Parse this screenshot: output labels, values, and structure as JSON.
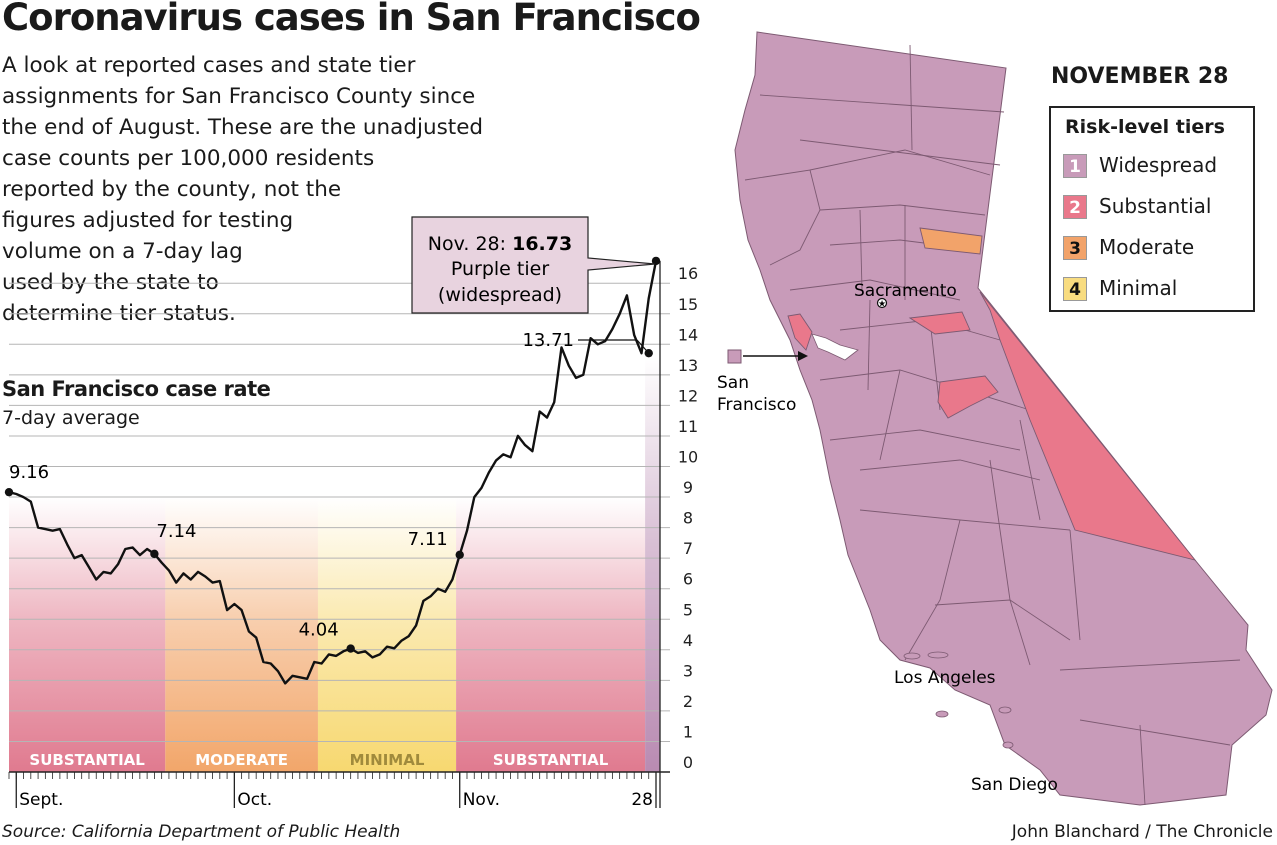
{
  "header": {
    "title": "Coronavirus cases in San Francisco",
    "intro_lines": [
      "A look at reported cases and state tier",
      "assignments for San Francisco County since",
      "the end of August. These are the unadjusted",
      "case counts per 100,000 residents",
      "reported by the county, not the",
      "figures adjusted for testing",
      "volume on a 7-day lag",
      "used by the state to",
      "determine tier status."
    ]
  },
  "chart_data": {
    "type": "line",
    "title": "San Francisco case rate",
    "subtitle": "7-day average",
    "x_tick_labels": [
      "Sept.",
      "Oct.",
      "Nov.",
      "28"
    ],
    "y_ticks": [
      0,
      1,
      2,
      3,
      4,
      5,
      6,
      7,
      8,
      9,
      10,
      11,
      12,
      13,
      14,
      15,
      16
    ],
    "ylim": [
      0,
      16.73
    ],
    "series": [
      {
        "x": [
          "Aug. 31",
          "Sept. 1",
          "Sept. 2",
          "Sept. 3",
          "Sept. 4",
          "Sept. 5",
          "Sept. 6",
          "Sept. 7",
          "Sept. 8",
          "Sept. 9",
          "Sept. 10",
          "Sept. 11",
          "Sept. 12",
          "Sept. 13",
          "Sept. 14",
          "Sept. 15",
          "Sept. 16",
          "Sept. 17",
          "Sept. 18",
          "Sept. 19",
          "Sept. 20",
          "Sept. 21",
          "Sept. 22",
          "Sept. 23",
          "Sept. 24",
          "Sept. 25",
          "Sept. 26",
          "Sept. 27",
          "Sept. 28",
          "Sept. 29",
          "Sept. 30",
          "Oct. 1",
          "Oct. 2",
          "Oct. 3",
          "Oct. 4",
          "Oct. 5",
          "Oct. 6",
          "Oct. 7",
          "Oct. 8",
          "Oct. 9",
          "Oct. 10",
          "Oct. 11",
          "Oct. 12",
          "Oct. 13",
          "Oct. 14",
          "Oct. 15",
          "Oct. 16",
          "Oct. 17",
          "Oct. 18",
          "Oct. 19",
          "Oct. 20",
          "Oct. 21",
          "Oct. 22",
          "Oct. 23",
          "Oct. 24",
          "Oct. 25",
          "Oct. 26",
          "Oct. 27",
          "Oct. 28",
          "Oct. 29",
          "Oct. 30",
          "Oct. 31",
          "Nov. 1",
          "Nov. 2",
          "Nov. 3",
          "Nov. 4",
          "Nov. 5",
          "Nov. 6",
          "Nov. 7",
          "Nov. 8",
          "Nov. 9",
          "Nov. 10",
          "Nov. 11",
          "Nov. 12",
          "Nov. 13",
          "Nov. 14",
          "Nov. 15",
          "Nov. 16",
          "Nov. 17",
          "Nov. 18",
          "Nov. 19",
          "Nov. 20",
          "Nov. 21",
          "Nov. 22",
          "Nov. 23",
          "Nov. 24",
          "Nov. 25",
          "Nov. 26",
          "Nov. 27",
          "Nov. 28"
        ],
        "values": [
          9.16,
          9.1,
          9.0,
          8.85,
          8.0,
          7.95,
          7.9,
          7.95,
          7.45,
          7.0,
          7.1,
          6.7,
          6.3,
          6.55,
          6.5,
          6.8,
          7.3,
          7.35,
          7.1,
          7.3,
          7.14,
          6.85,
          6.6,
          6.2,
          6.5,
          6.3,
          6.55,
          6.4,
          6.2,
          6.25,
          5.3,
          5.5,
          5.3,
          4.6,
          4.4,
          3.6,
          3.55,
          3.3,
          2.9,
          3.15,
          3.1,
          3.05,
          3.6,
          3.55,
          3.85,
          3.8,
          3.95,
          4.04,
          3.9,
          3.95,
          3.75,
          3.85,
          4.1,
          4.05,
          4.3,
          4.45,
          4.8,
          5.6,
          5.75,
          6.0,
          5.9,
          6.3,
          7.11,
          7.9,
          9.0,
          9.3,
          9.8,
          10.2,
          10.4,
          10.3,
          11.0,
          10.7,
          10.5,
          11.8,
          11.6,
          12.1,
          13.9,
          13.3,
          12.9,
          13.0,
          14.2,
          14.0,
          14.1,
          14.5,
          15.0,
          15.6,
          14.3,
          13.71,
          15.5,
          16.73
        ],
        "annotations": [
          {
            "label": "9.16",
            "x": "Aug. 31",
            "y": 9.16
          },
          {
            "label": "7.14",
            "x": "Sept. 20",
            "y": 7.14
          },
          {
            "label": "4.04",
            "x": "Oct. 17",
            "y": 4.04
          },
          {
            "label": "7.11",
            "x": "Nov. 1",
            "y": 7.11
          },
          {
            "label": "13.71",
            "x": "Nov. 27",
            "y": 13.71
          }
        ]
      }
    ],
    "tier_bands": [
      {
        "label": "SUBSTANTIAL",
        "start": "Aug. 31",
        "end": "Sept. 21",
        "color": "#e07a8f"
      },
      {
        "label": "MODERATE",
        "start": "Sept. 22",
        "end": "Oct. 12",
        "color": "#f2a66a"
      },
      {
        "label": "MINIMAL",
        "start": "Oct. 13",
        "end": "Oct. 31",
        "color": "#f7d870"
      },
      {
        "label": "SUBSTANTIAL",
        "start": "Nov. 1",
        "end": "Nov. 26",
        "color": "#e07a8f"
      },
      {
        "label": "",
        "start": "Nov. 27",
        "end": "Nov. 28",
        "color": "#b98bb2"
      }
    ],
    "callout": {
      "date": "Nov. 28:",
      "value": "16.73",
      "line2": "Purple tier",
      "line3": "(widespread)"
    }
  },
  "map": {
    "date_label": "NOVEMBER 28",
    "legend_title": "Risk-level tiers",
    "legend": [
      {
        "number": "1",
        "label": "Widespread",
        "color": "#c89bb9"
      },
      {
        "number": "2",
        "label": "Substantial",
        "color": "#e9788b"
      },
      {
        "number": "3",
        "label": "Moderate",
        "color": "#f2a36a"
      },
      {
        "number": "4",
        "label": "Minimal",
        "color": "#f8dc80"
      }
    ],
    "city_labels": {
      "sacramento": "Sacramento",
      "san_francisco_1": "San",
      "san_francisco_2": "Francisco",
      "los_angeles": "Los Angeles",
      "san_diego": "San Diego"
    },
    "colors": {
      "widespread": "#c89bb9",
      "substantial": "#e9788b",
      "moderate": "#f2a36a",
      "county_border": "#7d5a72"
    }
  },
  "footer": {
    "source": "Source: California Department of Public Health",
    "credit": "John Blanchard / The Chronicle"
  }
}
